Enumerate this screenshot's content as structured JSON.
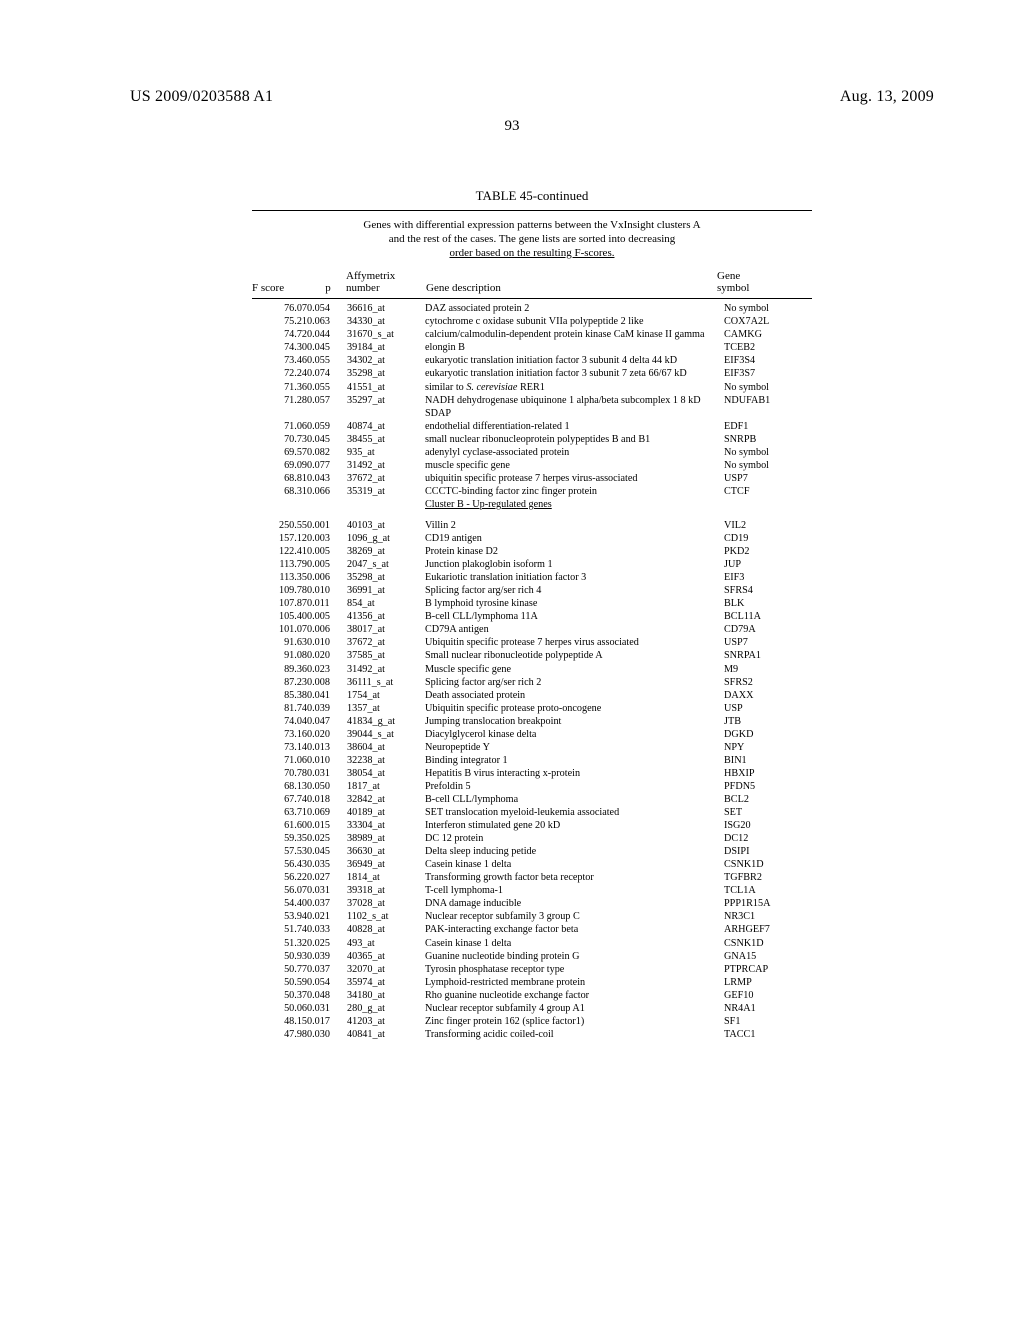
{
  "header": {
    "left": "US 2009/0203588 A1",
    "right": "Aug. 13, 2009"
  },
  "page_number": "93",
  "table": {
    "title": "TABLE 45-continued",
    "caption_lines": [
      "Genes with differential expression patterns between the VxInsight clusters A",
      "and the rest of the cases. The gene lists are sorted into decreasing",
      "order based on the resulting F-scores."
    ],
    "columns": {
      "c1_line1": "",
      "c1_line2": "F score",
      "c2_line1": "",
      "c2_line2": "p",
      "c3_line1": "Affymetrix",
      "c3_line2": "number",
      "c4_line1": "",
      "c4_line2": "Gene description",
      "c5_line1": "Gene",
      "c5_line2": "symbol"
    },
    "section_b_label": "Cluster B - Up-regulated genes",
    "rows_a": [
      {
        "f": "76.07",
        "p": "0.054",
        "a": "36616_at",
        "d": "DAZ associated protein 2",
        "s": "No symbol"
      },
      {
        "f": "75.21",
        "p": "0.063",
        "a": "34330_at",
        "d": "cytochrome c oxidase subunit VIIa polypeptide 2 like",
        "s": "COX7A2L"
      },
      {
        "f": "74.72",
        "p": "0.044",
        "a": "31670_s_at",
        "d": "calcium/calmodulin-dependent protein kinase CaM kinase II gamma",
        "s": "CAMKG"
      },
      {
        "f": "74.30",
        "p": "0.045",
        "a": "39184_at",
        "d": "elongin B",
        "s": "TCEB2"
      },
      {
        "f": "73.46",
        "p": "0.055",
        "a": "34302_at",
        "d": "eukaryotic translation initiation factor 3 subunit 4 delta 44 kD",
        "s": "EIF3S4"
      },
      {
        "f": "72.24",
        "p": "0.074",
        "a": "35298_at",
        "d": "eukaryotic translation initiation factor 3 subunit 7 zeta 66/67 kD",
        "s": "EIF3S7"
      },
      {
        "f": "71.36",
        "p": "0.055",
        "a": "41551_at",
        "d": "similar to <i>S. cerevisiae</i> RER1",
        "s": "No symbol"
      },
      {
        "f": "71.28",
        "p": "0.057",
        "a": "35297_at",
        "d": "NADH dehydrogenase ubiquinone 1 alpha/beta subcomplex 1 8 kD SDAP",
        "s": "NDUFAB1"
      },
      {
        "f": "71.06",
        "p": "0.059",
        "a": "40874_at",
        "d": "endothelial differentiation-related 1",
        "s": "EDF1"
      },
      {
        "f": "70.73",
        "p": "0.045",
        "a": "38455_at",
        "d": "small nuclear ribonucleoprotein polypeptides B and B1",
        "s": "SNRPB"
      },
      {
        "f": "69.57",
        "p": "0.082",
        "a": "935_at",
        "d": "adenylyl cyclase-associated protein",
        "s": "No symbol"
      },
      {
        "f": "69.09",
        "p": "0.077",
        "a": "31492_at",
        "d": "muscle specific gene",
        "s": "No symbol"
      },
      {
        "f": "68.81",
        "p": "0.043",
        "a": "37672_at",
        "d": "ubiquitin specific protease 7 herpes virus-associated",
        "s": "USP7"
      },
      {
        "f": "68.31",
        "p": "0.066",
        "a": "35319_at",
        "d": "CCCTC-binding factor zinc finger protein",
        "s": "CTCF"
      }
    ],
    "rows_b": [
      {
        "f": "250.55",
        "p": "0.001",
        "a": "40103_at",
        "d": "Villin 2",
        "s": "VIL2"
      },
      {
        "f": "157.12",
        "p": "0.003",
        "a": "1096_g_at",
        "d": "CD19 antigen",
        "s": "CD19"
      },
      {
        "f": "122.41",
        "p": "0.005",
        "a": "38269_at",
        "d": "Protein kinase D2",
        "s": "PKD2"
      },
      {
        "f": "113.79",
        "p": "0.005",
        "a": "2047_s_at",
        "d": "Junction plakoglobin isoform 1",
        "s": "JUP"
      },
      {
        "f": "113.35",
        "p": "0.006",
        "a": "35298_at",
        "d": "Eukariotic translation initiation factor 3",
        "s": "EIF3"
      },
      {
        "f": "109.78",
        "p": "0.010",
        "a": "36991_at",
        "d": "Splicing factor arg/ser rich 4",
        "s": "SFRS4"
      },
      {
        "f": "107.87",
        "p": "0.011",
        "a": "854_at",
        "d": "B lymphoid tyrosine kinase",
        "s": "BLK"
      },
      {
        "f": "105.40",
        "p": "0.005",
        "a": "41356_at",
        "d": "B-cell CLL/lymphoma 11A",
        "s": "BCL11A"
      },
      {
        "f": "101.07",
        "p": "0.006",
        "a": "38017_at",
        "d": "CD79A antigen",
        "s": "CD79A"
      },
      {
        "f": "91.63",
        "p": "0.010",
        "a": "37672_at",
        "d": "Ubiquitin specific protease 7 herpes virus associated",
        "s": "USP7"
      },
      {
        "f": "91.08",
        "p": "0.020",
        "a": "37585_at",
        "d": "Small nuclear ribonucleotide polypeptide A",
        "s": "SNRPA1"
      },
      {
        "f": "89.36",
        "p": "0.023",
        "a": "31492_at",
        "d": "Muscle specific gene",
        "s": "M9"
      },
      {
        "f": "87.23",
        "p": "0.008",
        "a": "36111_s_at",
        "d": "Splicing factor arg/ser rich 2",
        "s": "SFRS2"
      },
      {
        "f": "85.38",
        "p": "0.041",
        "a": "1754_at",
        "d": "Death associated protein",
        "s": "DAXX"
      },
      {
        "f": "81.74",
        "p": "0.039",
        "a": "1357_at",
        "d": "Ubiquitin specific protease proto-oncogene",
        "s": "USP"
      },
      {
        "f": "74.04",
        "p": "0.047",
        "a": "41834_g_at",
        "d": "Jumping translocation breakpoint",
        "s": "JTB"
      },
      {
        "f": "73.16",
        "p": "0.020",
        "a": "39044_s_at",
        "d": "Diacylglycerol kinase delta",
        "s": "DGKD"
      },
      {
        "f": "73.14",
        "p": "0.013",
        "a": "38604_at",
        "d": "Neuropeptide Y",
        "s": "NPY"
      },
      {
        "f": "71.06",
        "p": "0.010",
        "a": "32238_at",
        "d": "Binding integrator 1",
        "s": "BIN1"
      },
      {
        "f": "70.78",
        "p": "0.031",
        "a": "38054_at",
        "d": "Hepatitis B virus interacting x-protein",
        "s": "HBXIP"
      },
      {
        "f": "68.13",
        "p": "0.050",
        "a": "1817_at",
        "d": "Prefoldin 5",
        "s": "PFDN5"
      },
      {
        "f": "67.74",
        "p": "0.018",
        "a": "32842_at",
        "d": "B-cell CLL/lymphoma",
        "s": "BCL2"
      },
      {
        "f": "63.71",
        "p": "0.069",
        "a": "40189_at",
        "d": "SET translocation myeloid-leukemia associated",
        "s": "SET"
      },
      {
        "f": "61.60",
        "p": "0.015",
        "a": "33304_at",
        "d": "Interferon stimulated gene 20 kD",
        "s": "ISG20"
      },
      {
        "f": "59.35",
        "p": "0.025",
        "a": "38989_at",
        "d": "DC 12 protein",
        "s": "DC12"
      },
      {
        "f": "57.53",
        "p": "0.045",
        "a": "36630_at",
        "d": "Delta sleep inducing petide",
        "s": "DSIPI"
      },
      {
        "f": "56.43",
        "p": "0.035",
        "a": "36949_at",
        "d": "Casein kinase 1 delta",
        "s": "CSNK1D"
      },
      {
        "f": "56.22",
        "p": "0.027",
        "a": "1814_at",
        "d": "Transforming growth factor beta receptor",
        "s": "TGFBR2"
      },
      {
        "f": "56.07",
        "p": "0.031",
        "a": "39318_at",
        "d": "T-cell lymphoma-1",
        "s": "TCL1A"
      },
      {
        "f": "54.40",
        "p": "0.037",
        "a": "37028_at",
        "d": "DNA damage inducible",
        "s": "PPP1R15A"
      },
      {
        "f": "53.94",
        "p": "0.021",
        "a": "1102_s_at",
        "d": "Nuclear receptor subfamily 3 group C",
        "s": "NR3C1"
      },
      {
        "f": "51.74",
        "p": "0.033",
        "a": "40828_at",
        "d": "PAK-interacting exchange factor beta",
        "s": "ARHGEF7"
      },
      {
        "f": "51.32",
        "p": "0.025",
        "a": "493_at",
        "d": "Casein kinase 1 delta",
        "s": "CSNK1D"
      },
      {
        "f": "50.93",
        "p": "0.039",
        "a": "40365_at",
        "d": "Guanine nucleotide binding protein G",
        "s": "GNA15"
      },
      {
        "f": "50.77",
        "p": "0.037",
        "a": "32070_at",
        "d": "Tyrosin phosphatase receptor type",
        "s": "PTPRCAP"
      },
      {
        "f": "50.59",
        "p": "0.054",
        "a": "35974_at",
        "d": "Lymphoid-restricted membrane protein",
        "s": "LRMP"
      },
      {
        "f": "50.37",
        "p": "0.048",
        "a": "34180_at",
        "d": "Rho guanine nucleotide exchange factor",
        "s": "GEF10"
      },
      {
        "f": "50.06",
        "p": "0.031",
        "a": "280_g_at",
        "d": "Nuclear receptor subfamily 4 group A1",
        "s": "NR4A1"
      },
      {
        "f": "48.15",
        "p": "0.017",
        "a": "41203_at",
        "d": "Zinc finger protein 162 (splice factor1)",
        "s": "SF1"
      },
      {
        "f": "47.98",
        "p": "0.030",
        "a": "40841_at",
        "d": "Transforming acidic coiled-coil",
        "s": "TACC1"
      }
    ]
  }
}
